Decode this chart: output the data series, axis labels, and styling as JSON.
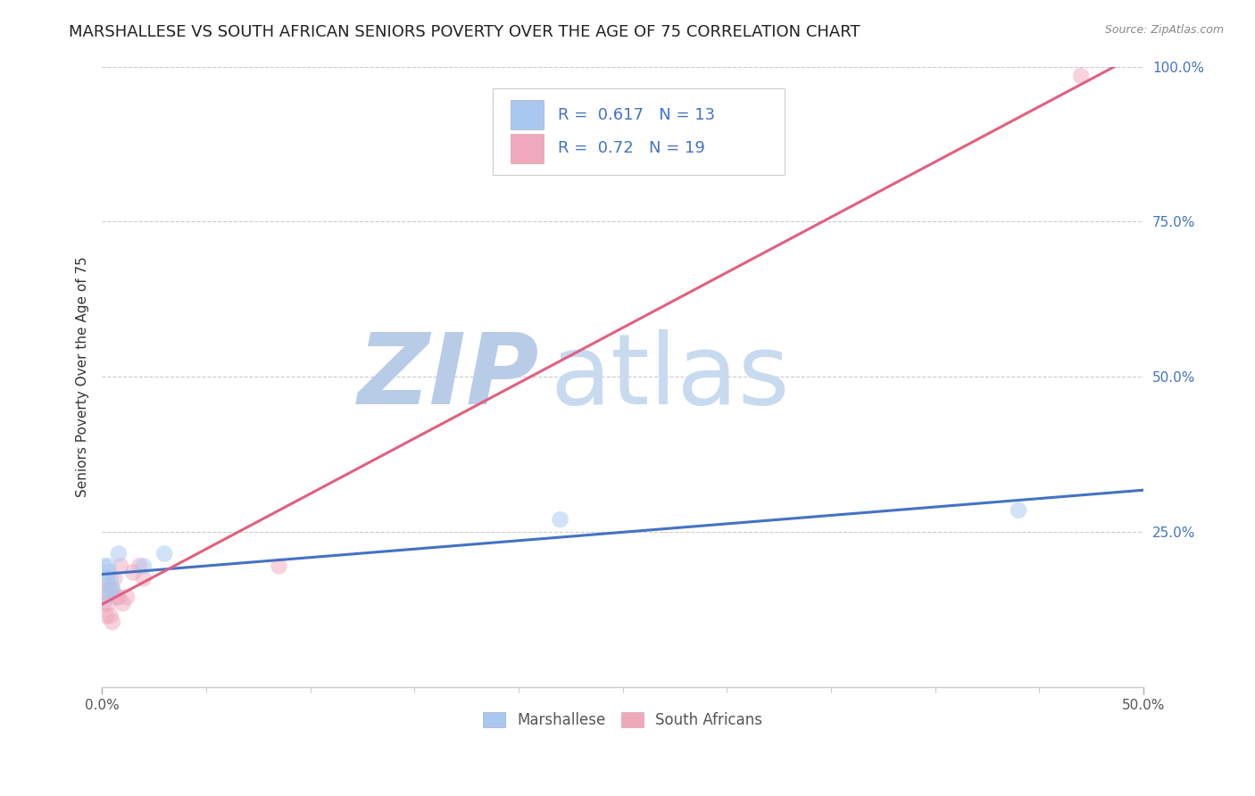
{
  "title": "MARSHALLESE VS SOUTH AFRICAN SENIORS POVERTY OVER THE AGE OF 75 CORRELATION CHART",
  "source": "Source: ZipAtlas.com",
  "ylabel": "Seniors Poverty Over the Age of 75",
  "xlim": [
    0.0,
    0.5
  ],
  "ylim": [
    0.0,
    1.0
  ],
  "xticks_major": [
    0.0,
    0.5
  ],
  "xticks_minor": [
    0.05,
    0.1,
    0.15,
    0.2,
    0.25,
    0.3,
    0.35,
    0.4,
    0.45
  ],
  "xtick_major_labels": [
    "0.0%",
    "50.0%"
  ],
  "yticks": [
    0.25,
    0.5,
    0.75,
    1.0
  ],
  "ytick_labels": [
    "25.0%",
    "50.0%",
    "75.0%",
    "100.0%"
  ],
  "marshallese_color": "#a8c8f0",
  "south_african_color": "#f0a8bc",
  "regression_blue": "#4472c4",
  "regression_pink": "#e06080",
  "R_marshallese": 0.617,
  "N_marshallese": 13,
  "R_south_african": 0.72,
  "N_south_african": 19,
  "marshallese_x": [
    0.001,
    0.002,
    0.002,
    0.003,
    0.003,
    0.004,
    0.004,
    0.005,
    0.008,
    0.02,
    0.03,
    0.22,
    0.44
  ],
  "marshallese_y": [
    0.195,
    0.175,
    0.145,
    0.185,
    0.195,
    0.175,
    0.155,
    0.16,
    0.215,
    0.195,
    0.215,
    0.27,
    0.285
  ],
  "south_african_x": [
    0.001,
    0.002,
    0.002,
    0.003,
    0.003,
    0.004,
    0.005,
    0.005,
    0.006,
    0.007,
    0.008,
    0.009,
    0.01,
    0.012,
    0.015,
    0.018,
    0.02,
    0.085,
    0.47
  ],
  "south_african_y": [
    0.135,
    0.155,
    0.115,
    0.165,
    0.135,
    0.115,
    0.105,
    0.155,
    0.175,
    0.145,
    0.145,
    0.195,
    0.135,
    0.145,
    0.185,
    0.195,
    0.175,
    0.195,
    0.985
  ],
  "watermark_zip": "ZIP",
  "watermark_atlas": "atlas",
  "watermark_color_zip": "#b8cce8",
  "watermark_color_atlas": "#c8daf0",
  "background_color": "#ffffff",
  "grid_color": "#cccccc",
  "title_fontsize": 13,
  "axis_label_fontsize": 11,
  "tick_fontsize": 11,
  "source_fontsize": 9,
  "dot_size": 180,
  "dot_alpha": 0.5,
  "line_width": 2.2
}
